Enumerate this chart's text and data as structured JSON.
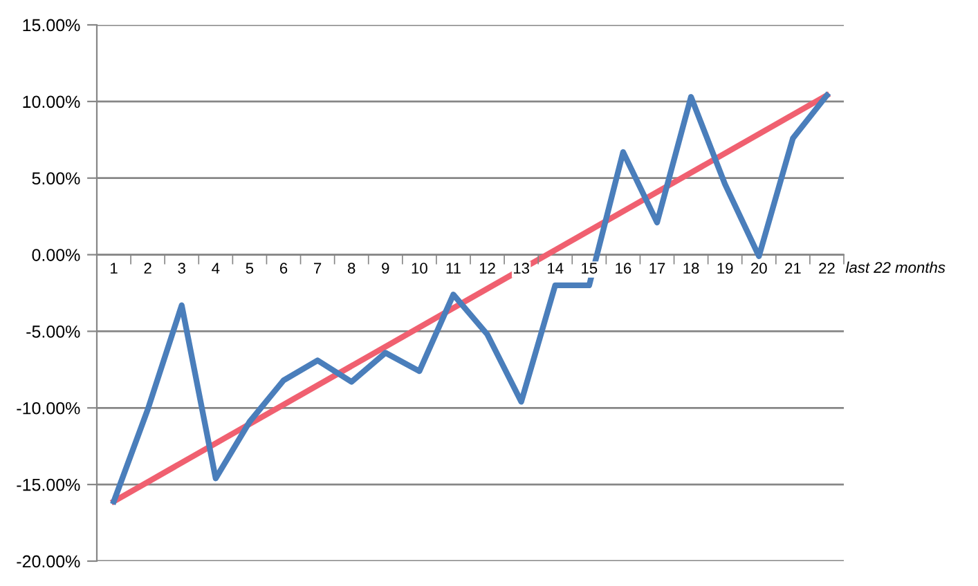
{
  "chart_data": {
    "type": "line",
    "categories": [
      "1",
      "2",
      "3",
      "4",
      "5",
      "6",
      "7",
      "8",
      "9",
      "10",
      "11",
      "12",
      "13",
      "14",
      "15",
      "16",
      "17",
      "18",
      "19",
      "20",
      "21",
      "22"
    ],
    "xlabel": "last 22 months",
    "series": [
      {
        "color": "#4a7ebb",
        "values": [
          -16.1,
          -10.1,
          -3.3,
          -14.6,
          -10.9,
          -8.2,
          -6.9,
          -8.3,
          -6.4,
          -7.6,
          -2.6,
          -5.2,
          -9.6,
          -2.0,
          -2.0,
          6.7,
          2.1,
          10.3,
          4.6,
          -0.1,
          7.6,
          10.4
        ]
      },
      {
        "type": "line",
        "color": "#f06070",
        "x": [
          "1",
          "22"
        ],
        "values": [
          -16.1,
          10.4
        ]
      }
    ],
    "ylim": [
      -20,
      15
    ],
    "yticks": [
      {
        "value": -20,
        "label": "-20.00%"
      },
      {
        "value": -15,
        "label": "-15.00%"
      },
      {
        "value": -10,
        "label": "-10.00%"
      },
      {
        "value": -5,
        "label": "-5.00%"
      },
      {
        "value": 0,
        "label": "0.00%"
      },
      {
        "value": 5,
        "label": "5.00%"
      },
      {
        "value": 10,
        "label": "10.00%"
      },
      {
        "value": 15,
        "label": "15.00%"
      }
    ],
    "grid": "y",
    "legend": false,
    "marker": "none",
    "line_style": "solid"
  }
}
